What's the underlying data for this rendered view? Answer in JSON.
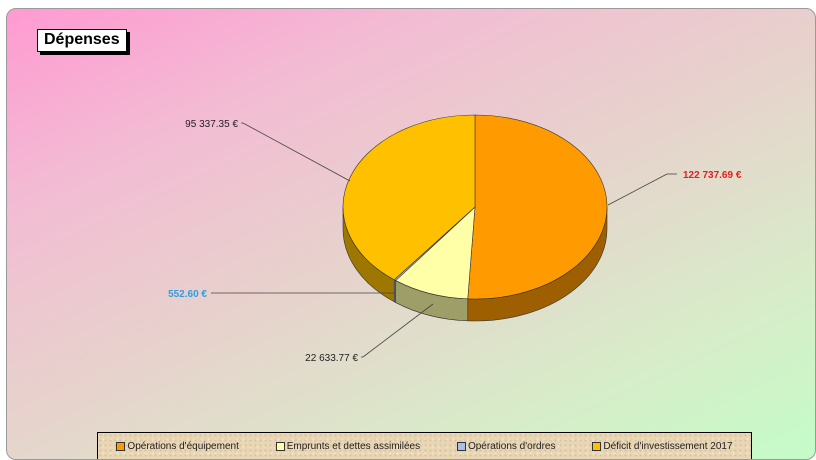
{
  "chart_data": {
    "type": "pie",
    "title": "Dépenses",
    "slices": [
      {
        "label": "Opérations d'équipement",
        "value": 122737.69,
        "value_label": "122 737.69 €",
        "color": "#ff9a00",
        "label_color": "#e02020"
      },
      {
        "label": "Emprunts et dettes assimilées",
        "value": 22633.77,
        "value_label": "22 633.77 €",
        "color": "#ffffa8",
        "label_color": "#222222"
      },
      {
        "label": "Opérations d'ordres",
        "value": 552.6,
        "value_label": "552.60 €",
        "color": "#a8c0e8",
        "label_color": "#2aa0e0"
      },
      {
        "label": "Déficit d'investissement 2017",
        "value": 95337.35,
        "value_label": "95 337.35 €",
        "color": "#ffc000",
        "label_color": "#222222"
      }
    ],
    "legend_position": "bottom"
  },
  "colors": {
    "background_gradient": [
      "#ff9ad2",
      "#c4fcc8"
    ],
    "legend_background": "#e9d6b5"
  }
}
